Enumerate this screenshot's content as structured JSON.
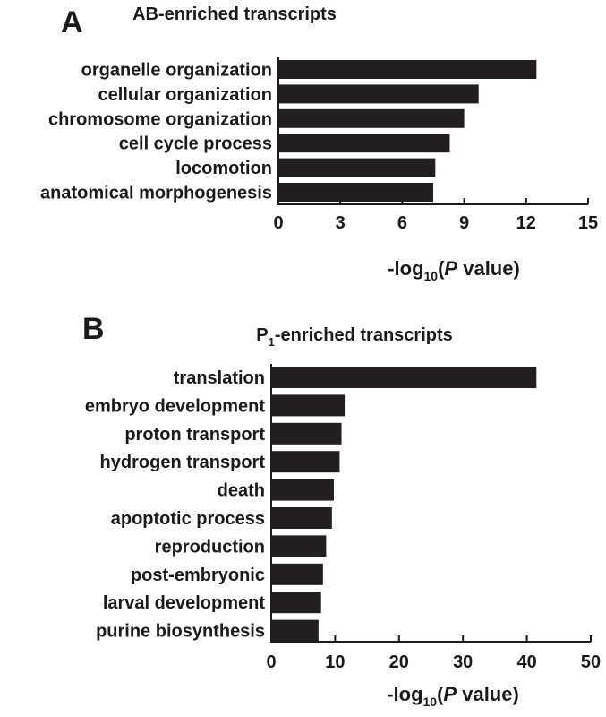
{
  "chart_data": [
    {
      "type": "bar",
      "orientation": "horizontal",
      "panel_letter": "A",
      "title": "AB-enriched transcripts",
      "title_color": "#2e3192",
      "bar_color": "#231f20",
      "categories": [
        "organelle organization",
        "cellular organization",
        "chromosome organization",
        "cell cycle process",
        "locomotion",
        "anatomical morphogenesis"
      ],
      "values": [
        12.5,
        9.7,
        9.0,
        8.3,
        7.6,
        7.5
      ],
      "xlim": [
        0,
        15
      ],
      "xticks": [
        "0",
        "3",
        "6",
        "9",
        "12",
        "15"
      ],
      "xlabel": {
        "prefix": "-log",
        "sub": "10",
        "open": "(",
        "italic": "P",
        "suffix": " value)"
      },
      "grid": false,
      "legend": false
    },
    {
      "type": "bar",
      "orientation": "horizontal",
      "panel_letter": "B",
      "title": {
        "main": "P",
        "sub": "1",
        "rest": "-enriched transcripts"
      },
      "title_color": "#c1272d",
      "bar_color": "#231f20",
      "categories": [
        "translation",
        "embryo development",
        "proton transport",
        "hydrogen transport",
        "death",
        "apoptotic process",
        "reproduction",
        "post-embryonic",
        "larval development",
        "purine biosynthesis"
      ],
      "values": [
        41.5,
        11.5,
        11.0,
        10.7,
        9.8,
        9.5,
        8.6,
        8.1,
        7.8,
        7.4
      ],
      "xlim": [
        0,
        50
      ],
      "xticks": [
        "0",
        "10",
        "20",
        "30",
        "40",
        "50"
      ],
      "xlabel": {
        "prefix": "-log",
        "sub": "10",
        "open": "(",
        "italic": "P",
        "suffix": " value)"
      },
      "grid": false,
      "legend": false
    }
  ]
}
